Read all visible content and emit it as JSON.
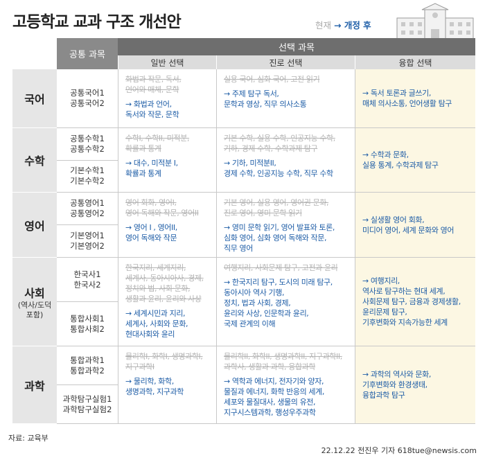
{
  "title": "고등학교 교과 구조 개선안",
  "legend": {
    "before": "현재",
    "after": "→ 개정 후"
  },
  "header": {
    "common": "공통 과목",
    "elective": "선택 과목",
    "columns": [
      "일반 선택",
      "진로 선택",
      "융합 선택"
    ]
  },
  "rows": [
    {
      "name": "국어",
      "common": [
        [
          "공통국어1",
          "공통국어2"
        ]
      ],
      "general": {
        "old": [
          "화법과 작문, 독서,",
          "언어와 매체, 문학"
        ],
        "new": [
          "→ 화법과 언어,",
          "독서와 작문, 문학"
        ]
      },
      "career": {
        "old": [
          "실용 국어, 심화 국어, 고전 읽기"
        ],
        "new": [
          "→ 주제 탐구 독서,",
          "문학과 영상, 직무 의사소통"
        ]
      },
      "fusion": [
        "→ 독서 토론과 글쓰기,",
        "매체 의사소통, 언어생활 탐구"
      ]
    },
    {
      "name": "수학",
      "common": [
        [
          "공통수학1",
          "공통수학2"
        ],
        [
          "기본수학1",
          "기본수학2"
        ]
      ],
      "general": {
        "old": [
          "수학I, 수학II, 미적분,",
          "확률과 통계"
        ],
        "new": [
          "→ 대수, 미적분 I,",
          "확률과 통계"
        ]
      },
      "career": {
        "old": [
          "기본 수학, 실용 수학, 인공지능 수학,",
          "기하, 경제 수학, 수학과제 탐구"
        ],
        "new": [
          "→ 기하, 미적분II,",
          "경제 수학, 인공지능 수학, 직무 수학"
        ]
      },
      "fusion": [
        "→ 수학과 문화,",
        "실용 통계, 수학과제 탐구"
      ]
    },
    {
      "name": "영어",
      "common": [
        [
          "공통영어1",
          "공통영어2"
        ],
        [
          "기본영어1",
          "기본영어2"
        ]
      ],
      "general": {
        "old": [
          "영어 회화, 영어I,",
          "영어 독해와 작문, 영어II"
        ],
        "new": [
          "→ 영어 I , 영어II,",
          "영어 독해와 작문"
        ]
      },
      "career": {
        "old": [
          "기본 영어, 실용 영어, 영어권 문화,",
          "진로 영어, 영미 문학 읽기"
        ],
        "new": [
          "→ 영미 문학 읽기, 영어 발표와 토론,",
          "심화 영어, 심화 영어 독해와 작문,",
          "직무 영어"
        ]
      },
      "fusion": [
        "→ 실생활 영어 회화,",
        "미디어 영어, 세계 문화와 영어"
      ]
    },
    {
      "name": "사회",
      "note": [
        "(역사/도덕",
        "포함)"
      ],
      "common": [
        [
          "한국사1",
          "한국사2"
        ],
        [
          "통합사회1",
          "통합사회2"
        ]
      ],
      "general": {
        "old": [
          "한국지리, 세계지리,",
          "세계사, 동아시아사, 경제,",
          "정치와 법, 사회·문화,",
          "생활과 윤리, 윤리와 사상"
        ],
        "new": [
          "→ 세계시민과 지리,",
          "세계사, 사회와 문화,",
          "현대사회와 윤리"
        ]
      },
      "career": {
        "old": [
          "여행지리, 사회문제 탐구, 고전과 윤리"
        ],
        "new": [
          "→ 한국지리 탐구, 도시의 미래 탐구,",
          "동아시아 역사 기행,",
          "정치, 법과 사회, 경제,",
          "윤리와 사상, 인문학과 윤리,",
          "국제 관계의 이해"
        ]
      },
      "fusion": [
        "→ 여행지리,",
        "역사로 탐구하는 현대 세계,",
        "사회문제 탐구, 금융과 경제생활,",
        "윤리문제 탐구,",
        "기후변화와 지속가능한 세계"
      ]
    },
    {
      "name": "과학",
      "common": [
        [
          "통합과학1",
          "통합과학2"
        ],
        [
          "과학탐구실험1",
          "과학탐구실험2"
        ]
      ],
      "general": {
        "old": [
          "물리학I, 화학I, 생명과학I,",
          "지구과학I"
        ],
        "new": [
          "→ 물리학, 화학,",
          "생명과학, 지구과학"
        ]
      },
      "career": {
        "old": [
          "물리학II, 화학II, 생명과학II, 지구과학II,",
          "과학사, 생활과 과학, 융합과학"
        ],
        "new": [
          "→ 역학과 에너지, 전자기와 양자,",
          "물질과 에너지, 화학 반응의 세계,",
          "세포와 물질대사, 생물의 유전,",
          "지구시스템과학, 행성우주과학"
        ]
      },
      "fusion": [
        "→ 과학의 역사와 문화,",
        "기후변화와 환경생태,",
        "융합과학 탐구"
      ]
    }
  ],
  "footer": {
    "source": "자료: 교육부",
    "credit": "22.12.22 전진우 기자 618tue@newsis.com"
  }
}
